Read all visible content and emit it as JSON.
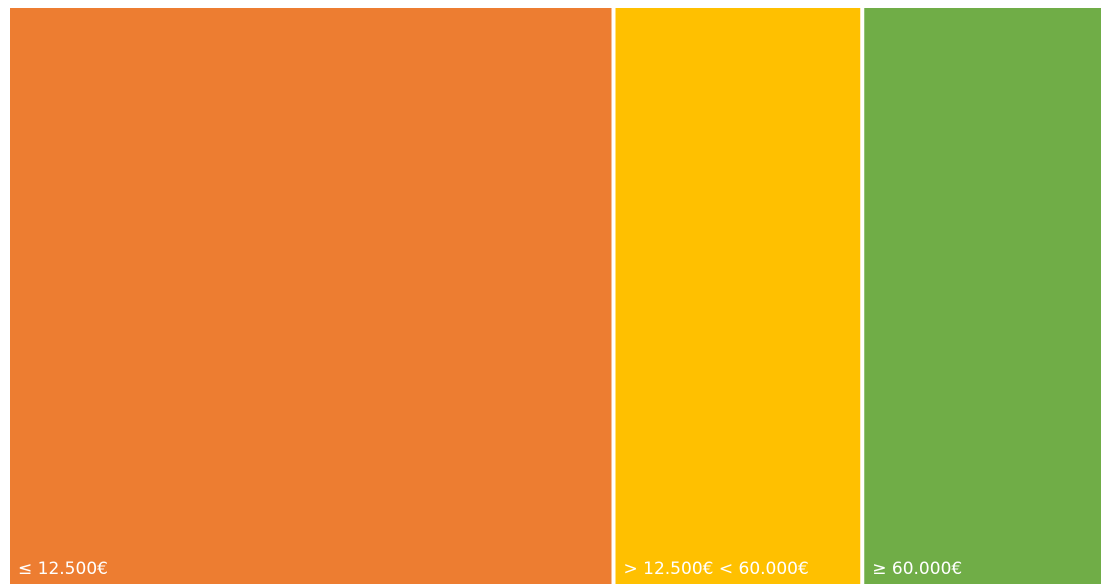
{
  "chart_data": {
    "type": "treemap",
    "categories": [
      "≤ 12.500€",
      "> 12.500€ < 60.000€",
      "≥ 60.000€"
    ],
    "values": [
      55.5,
      22.8,
      21.7
    ],
    "colors": [
      "#ed7d31",
      "#ffc000",
      "#70ad47"
    ]
  }
}
